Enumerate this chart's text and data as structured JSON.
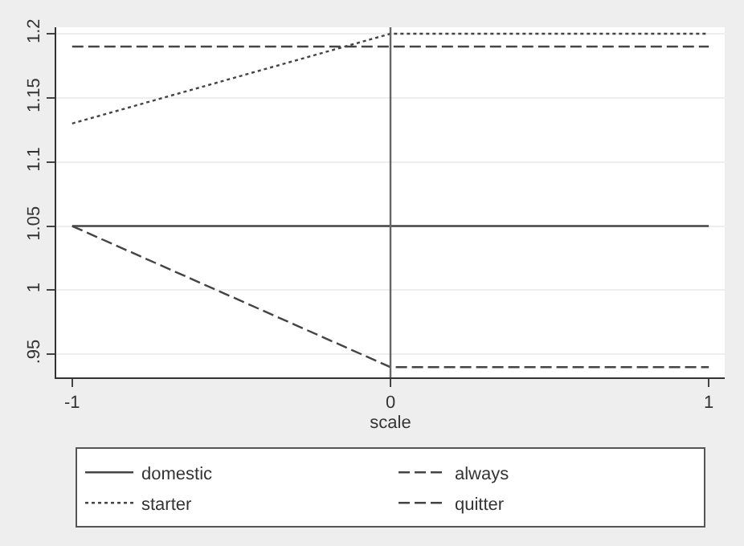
{
  "chart_data": {
    "type": "line",
    "xlabel": "scale",
    "x": [
      -1,
      0,
      1
    ],
    "series": [
      {
        "name": "domestic",
        "color": "#444444",
        "line_style": "solid",
        "values": [
          1.05,
          1.05,
          1.05
        ]
      },
      {
        "name": "always",
        "color": "#444444",
        "line_style": "dashed",
        "values": [
          1.19,
          1.19,
          1.19
        ]
      },
      {
        "name": "starter",
        "color": "#444444",
        "line_style": "dotted",
        "values": [
          1.13,
          1.2,
          1.2
        ]
      },
      {
        "name": "quitter",
        "color": "#444444",
        "line_style": "dashed",
        "values": [
          1.05,
          0.94,
          0.94
        ]
      }
    ],
    "xlim": [
      -1.05,
      1.05
    ],
    "xticks": [
      -1,
      0,
      1
    ],
    "ylim": [
      0.932,
      1.205
    ],
    "yticks": [
      {
        "value": 0.95,
        "label": ".95"
      },
      1,
      1.05,
      1.1,
      1.15,
      1.2
    ],
    "ref_lines": [
      {
        "axis": "x",
        "value": 0,
        "color": "#666666"
      }
    ],
    "grid": "y",
    "legend": "bottom"
  }
}
